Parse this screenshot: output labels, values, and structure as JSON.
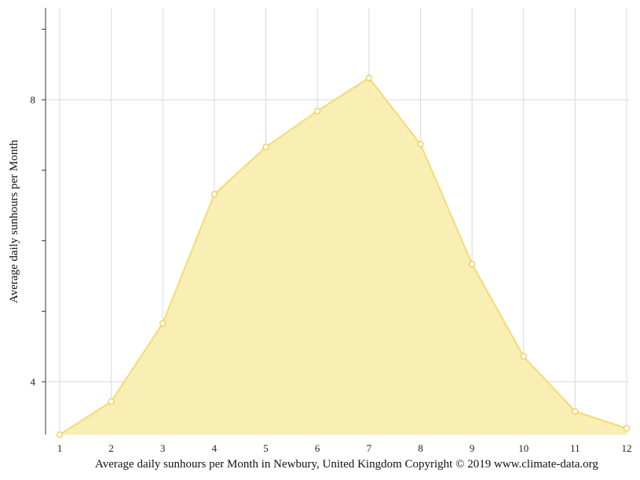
{
  "chart_data": {
    "type": "area",
    "title": "",
    "xlabel": "",
    "ylabel": "Average daily sunhours per Month",
    "x": [
      1,
      2,
      3,
      4,
      5,
      6,
      7,
      8,
      9,
      10,
      11,
      12
    ],
    "series": [
      {
        "values": [
          3.25,
          3.72,
          4.83,
          6.66,
          7.33,
          7.84,
          8.31,
          7.37,
          5.67,
          4.36,
          3.58,
          3.34
        ]
      }
    ],
    "xticks": [
      "1",
      "2",
      "3",
      "4",
      "5",
      "6",
      "7",
      "8",
      "9",
      "10",
      "11",
      "12"
    ],
    "yticks": [
      "4",
      "8"
    ],
    "ylim": [
      3.25,
      9.3
    ],
    "grid": true,
    "legend": "none",
    "colors": {
      "fill": "#f9eeb0",
      "line": "#f5dc7a",
      "marker_stroke": "#eccc55",
      "grid": "#d9d9d9",
      "axis": "#333333"
    }
  },
  "caption": "Average daily sunhours per Month in Newbury, United Kingdom Copyright © 2019 www.climate-data.org"
}
